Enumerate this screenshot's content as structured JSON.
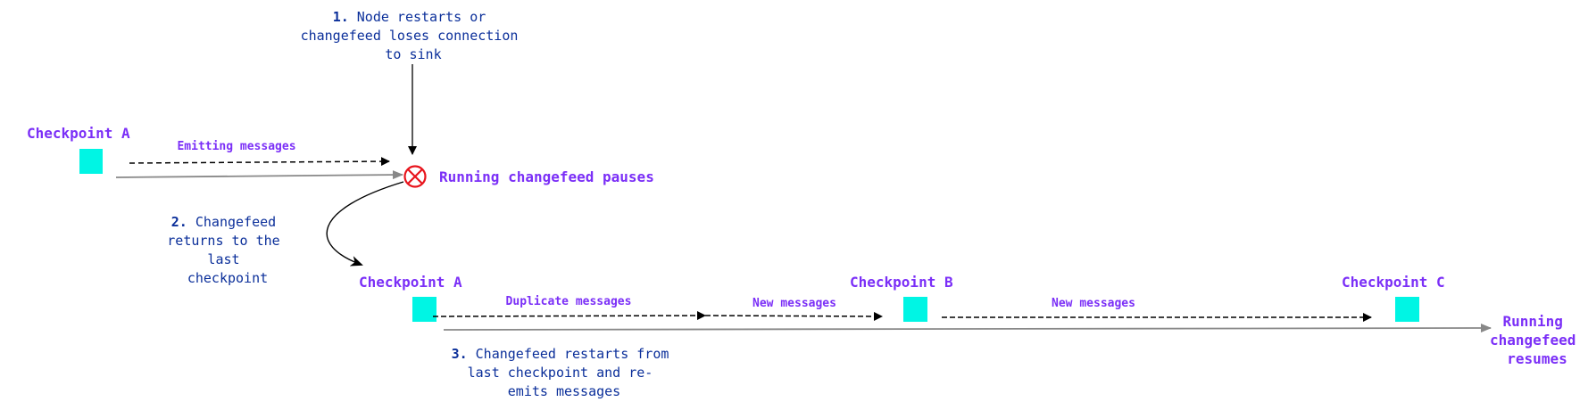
{
  "colors": {
    "checkpoint": "#00f5e4",
    "label": "#7b2ff7",
    "note": "#0b2f9a",
    "error": "#e8141c",
    "timeline": "#888888"
  },
  "step1": {
    "num": "1.",
    "lines": [
      "Node restarts or",
      "changefeed loses connection",
      "to sink"
    ]
  },
  "step2": {
    "num": "2.",
    "lines": [
      "Changefeed",
      "returns to the",
      "last",
      "checkpoint"
    ]
  },
  "step3": {
    "num": "3.",
    "lines": [
      "Changefeed restarts from",
      "last checkpoint and re-",
      "emits messages"
    ]
  },
  "top_row": {
    "checkpoint": "Checkpoint A",
    "message": "Emitting messages",
    "status": "Running changefeed pauses",
    "status_icon": "circle-x-icon"
  },
  "bottom_row": {
    "checkpoints": [
      "Checkpoint A",
      "Checkpoint B",
      "Checkpoint C"
    ],
    "messages": [
      "Duplicate messages",
      "New messages",
      "New messages"
    ],
    "status": [
      "Running",
      "changefeed",
      "resumes"
    ]
  }
}
